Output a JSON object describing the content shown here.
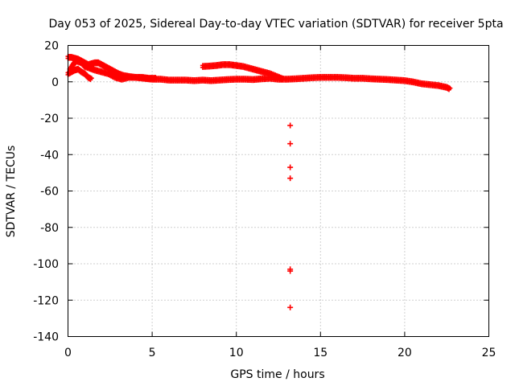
{
  "chart_data": {
    "type": "scatter",
    "title": "Day 053 of 2025, Sidereal Day-to-day VTEC variation (SDTVAR) for receiver 5pta",
    "xlabel": "GPS time / hours",
    "ylabel": "SDTVAR / TECUs",
    "xlim": [
      0,
      25
    ],
    "ylim": [
      -140,
      20
    ],
    "xticks": [
      0,
      5,
      10,
      15,
      20,
      25
    ],
    "yticks": [
      20,
      0,
      -20,
      -40,
      -60,
      -80,
      -100,
      -120,
      -140
    ],
    "grid": true,
    "marker_color": "#ff0000",
    "series": [
      {
        "name": "band-main",
        "x": [
          0.1,
          0.3,
          0.5,
          0.8,
          1.0,
          1.3,
          1.6,
          2.0,
          2.4,
          2.8,
          3.2,
          3.6,
          4.0,
          4.5,
          5.0,
          5.5,
          6.0,
          6.5,
          7.0,
          7.5,
          8.0,
          8.5,
          9.0,
          9.5,
          10.0,
          10.5,
          11.0,
          11.5,
          12.0,
          12.5,
          13.0,
          13.5,
          14.0,
          14.5,
          15.0,
          15.5,
          16.0,
          16.5,
          17.0,
          17.5,
          18.0,
          18.5,
          19.0,
          19.5,
          20.0,
          20.5,
          21.0,
          21.5,
          22.0,
          22.5,
          22.7
        ],
        "y": [
          7,
          10,
          12,
          11,
          9,
          8,
          7,
          6,
          5,
          3,
          2,
          3,
          3,
          2.5,
          2,
          2,
          1.5,
          1.5,
          1.5,
          1.2,
          1.5,
          1.2,
          1.5,
          1.8,
          2,
          2,
          1.8,
          2.2,
          2.5,
          2,
          2,
          2.2,
          2.5,
          2.8,
          3,
          3,
          3,
          2.8,
          2.5,
          2.5,
          2.2,
          2,
          1.8,
          1.5,
          1.2,
          0.5,
          -0.5,
          -1,
          -1.5,
          -2.5,
          -3.5
        ]
      },
      {
        "name": "band-upper",
        "x": [
          0.0,
          0.2,
          0.4,
          0.6,
          0.8,
          1.0,
          1.2,
          1.4,
          1.6,
          1.8,
          2.0,
          2.2,
          2.4,
          2.6,
          2.8,
          3.0,
          3.3,
          3.6,
          4.0,
          4.4,
          4.8,
          5.2
        ],
        "y": [
          14,
          14,
          13.5,
          13,
          12,
          11,
          10,
          10.5,
          11,
          11,
          10,
          9,
          8,
          7,
          6,
          5,
          4,
          3.5,
          3,
          3,
          2.5,
          2.5
        ]
      },
      {
        "name": "band-lower",
        "x": [
          0.0,
          0.2,
          0.4,
          0.6,
          0.8,
          1.0,
          1.2,
          1.4
        ],
        "y": [
          5,
          6,
          7,
          7.5,
          6,
          5,
          3,
          2
        ]
      },
      {
        "name": "band-hump",
        "x": [
          8.0,
          8.4,
          8.8,
          9.2,
          9.6,
          10.0,
          10.4,
          10.8,
          11.2,
          11.6,
          12.0,
          12.4,
          12.8
        ],
        "y": [
          9,
          9.2,
          9.5,
          10,
          10,
          9.5,
          9,
          8,
          7,
          6,
          5,
          3.5,
          2
        ]
      },
      {
        "name": "outliers",
        "x": [
          13.2,
          13.2,
          13.2,
          13.2,
          13.2,
          13.2,
          13.2
        ],
        "y": [
          -24,
          -34,
          -47,
          -53,
          -103,
          -104,
          -124
        ]
      }
    ]
  }
}
